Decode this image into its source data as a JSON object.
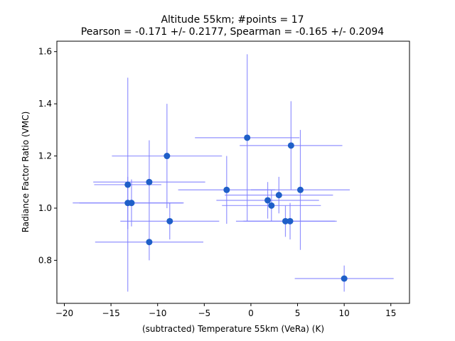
{
  "chart_data": {
    "type": "scatter",
    "title": "Altitude 55km;  #points = 17",
    "subtitle": "Pearson = -0.171 +/-  0.2177, Spearman = -0.165 +/-  0.2094",
    "xlabel": "(subtracted) Temperature 55km (VeRa) (K)",
    "ylabel": "Radiance Factor Ratio (VMC)",
    "xlim": [
      -20.8,
      17.0
    ],
    "ylim": [
      0.635,
      1.64
    ],
    "xticks": [
      -20,
      -15,
      -10,
      -5,
      0,
      5,
      10,
      15
    ],
    "xtick_labels": [
      "−20",
      "−15",
      "−10",
      "−5",
      "0",
      "5",
      "10",
      "15"
    ],
    "yticks": [
      0.8,
      1.0,
      1.2,
      1.4,
      1.6
    ],
    "ytick_labels": [
      "0.8",
      "1.0",
      "1.2",
      "1.4",
      "1.6"
    ],
    "grid": false,
    "point_color": "#1f5fc8",
    "errorbar_color": "#8080ff",
    "points": [
      {
        "x": -13.2,
        "y": 1.09,
        "xerr": 3.6,
        "yerr": 0.41
      },
      {
        "x": -13.2,
        "y": 1.02,
        "xerr": 5.9,
        "yerr": 0.1
      },
      {
        "x": -12.8,
        "y": 1.02,
        "xerr": 5.6,
        "yerr": 0.09
      },
      {
        "x": -10.9,
        "y": 1.1,
        "xerr": 6.0,
        "yerr": 0.16
      },
      {
        "x": -10.9,
        "y": 0.87,
        "xerr": 5.8,
        "yerr": 0.07
      },
      {
        "x": -9.0,
        "y": 1.2,
        "xerr": 5.9,
        "yerr": 0.2
      },
      {
        "x": -8.7,
        "y": 0.95,
        "xerr": 5.3,
        "yerr": 0.07
      },
      {
        "x": -2.6,
        "y": 1.07,
        "xerr": 5.2,
        "yerr": 0.13
      },
      {
        "x": -0.4,
        "y": 1.27,
        "xerr": 5.6,
        "yerr": 0.32
      },
      {
        "x": 1.8,
        "y": 1.03,
        "xerr": 5.5,
        "yerr": 0.07
      },
      {
        "x": 2.2,
        "y": 1.01,
        "xerr": 5.3,
        "yerr": 0.06
      },
      {
        "x": 3.0,
        "y": 1.05,
        "xerr": 5.8,
        "yerr": 0.07
      },
      {
        "x": 3.7,
        "y": 0.95,
        "xerr": 5.3,
        "yerr": 0.06
      },
      {
        "x": 4.2,
        "y": 0.95,
        "xerr": 5.0,
        "yerr": 0.07
      },
      {
        "x": 4.3,
        "y": 1.24,
        "xerr": 5.5,
        "yerr": 0.17
      },
      {
        "x": 5.3,
        "y": 1.07,
        "xerr": 5.3,
        "yerr": 0.23
      },
      {
        "x": 10.0,
        "y": 0.73,
        "xerr": 5.3,
        "yerr": 0.05
      }
    ]
  }
}
